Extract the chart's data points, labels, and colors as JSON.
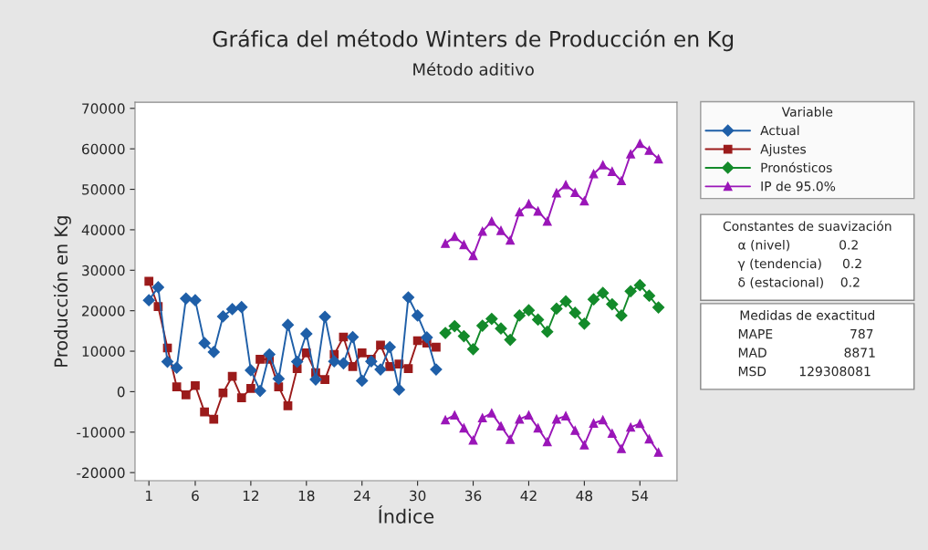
{
  "chart_data": {
    "type": "line",
    "title": "Gráfica del método Winters de Producción en Kg",
    "subtitle": "Método aditivo",
    "xlabel": "Índice",
    "ylabel": "Producción en Kg",
    "legend_title": "Variable",
    "legend": "top right",
    "grid": false,
    "xlim": [
      -0.5,
      58
    ],
    "xticks": [
      1,
      6,
      12,
      18,
      24,
      30,
      36,
      42,
      48,
      54
    ],
    "ylim": [
      -22000,
      71500
    ],
    "yticks": [
      -20000,
      -10000,
      0,
      10000,
      20000,
      30000,
      40000,
      50000,
      60000,
      70000
    ],
    "series": [
      {
        "name": "Actual",
        "color": "#1f5fa8",
        "marker": "diamond",
        "x": [
          1,
          2,
          3,
          4,
          5,
          6,
          7,
          8,
          9,
          10,
          11,
          12,
          13,
          14,
          15,
          16,
          17,
          18,
          19,
          20,
          21,
          22,
          23,
          24,
          25,
          26,
          27,
          28,
          29,
          30,
          31,
          32
        ],
        "values": [
          22600,
          25800,
          7400,
          5900,
          23000,
          22600,
          12000,
          9800,
          18600,
          20400,
          20900,
          5300,
          200,
          9200,
          3200,
          16500,
          7400,
          14300,
          3000,
          18500,
          7500,
          7000,
          13500,
          2700,
          7500,
          5500,
          11000,
          500,
          23300,
          18800,
          13400,
          5500
        ]
      },
      {
        "name": "Ajustes",
        "color": "#9b1b1b",
        "marker": "square",
        "x": [
          1,
          2,
          3,
          4,
          5,
          6,
          7,
          8,
          9,
          10,
          11,
          12,
          13,
          14,
          15,
          16,
          17,
          18,
          19,
          20,
          21,
          22,
          23,
          24,
          25,
          26,
          27,
          28,
          29,
          30,
          31,
          32
        ],
        "values": [
          27300,
          21000,
          10800,
          1200,
          -800,
          1500,
          -5000,
          -6800,
          -300,
          3800,
          -1500,
          800,
          8000,
          8000,
          1200,
          -3500,
          5700,
          9600,
          4700,
          3000,
          9200,
          13500,
          6200,
          9600,
          8000,
          11500,
          6200,
          6800,
          5700,
          12600,
          12000,
          11000
        ]
      },
      {
        "name": "Pronósticos",
        "color": "#138a2a",
        "marker": "diamond",
        "x": [
          33,
          34,
          35,
          36,
          37,
          38,
          39,
          40,
          41,
          42,
          43,
          44,
          45,
          46,
          47,
          48,
          49,
          50,
          51,
          52,
          53,
          54,
          55,
          56
        ],
        "values": [
          14500,
          16200,
          13700,
          10500,
          16300,
          18000,
          15600,
          12800,
          18800,
          20100,
          17800,
          14800,
          20500,
          22300,
          19500,
          16800,
          22800,
          24400,
          21600,
          18800,
          24800,
          26300,
          23700,
          20800
        ]
      },
      {
        "name": "IP de 95.0%",
        "color": "#9a16b8",
        "marker": "triangle",
        "x": [
          33,
          34,
          35,
          36,
          37,
          38,
          39,
          40,
          41,
          42,
          43,
          44,
          45,
          46,
          47,
          48,
          49,
          50,
          51,
          52,
          53,
          54,
          55,
          56
        ],
        "values": [
          36600,
          38300,
          36300,
          33600,
          39600,
          42100,
          39800,
          37400,
          44400,
          46400,
          44600,
          42100,
          49100,
          51100,
          49200,
          47100,
          53800,
          56000,
          54400,
          52100,
          58700,
          61300,
          59600,
          57500
        ]
      },
      {
        "color": "#9a16b8",
        "marker": "triangle",
        "x": [
          33,
          34,
          35,
          36,
          37,
          38,
          39,
          40,
          41,
          42,
          43,
          44,
          45,
          46,
          47,
          48,
          49,
          50,
          51,
          52,
          53,
          54,
          55,
          56
        ],
        "values": [
          -7000,
          -5800,
          -9000,
          -12000,
          -6500,
          -5300,
          -8500,
          -11800,
          -6800,
          -5800,
          -9000,
          -12400,
          -6800,
          -6000,
          -9600,
          -13200,
          -7800,
          -7000,
          -10300,
          -14100,
          -8800,
          -7900,
          -11700,
          -15000
        ]
      }
    ],
    "annotations": [
      "Constantes de suavización",
      "α (nivel)            0.2",
      "γ (tendencia)     0.2",
      "δ (estacional)    0.2",
      "Medidas de exactitud",
      "MAPE                   787",
      "MAD                   8871",
      "MSD        129308081"
    ]
  }
}
